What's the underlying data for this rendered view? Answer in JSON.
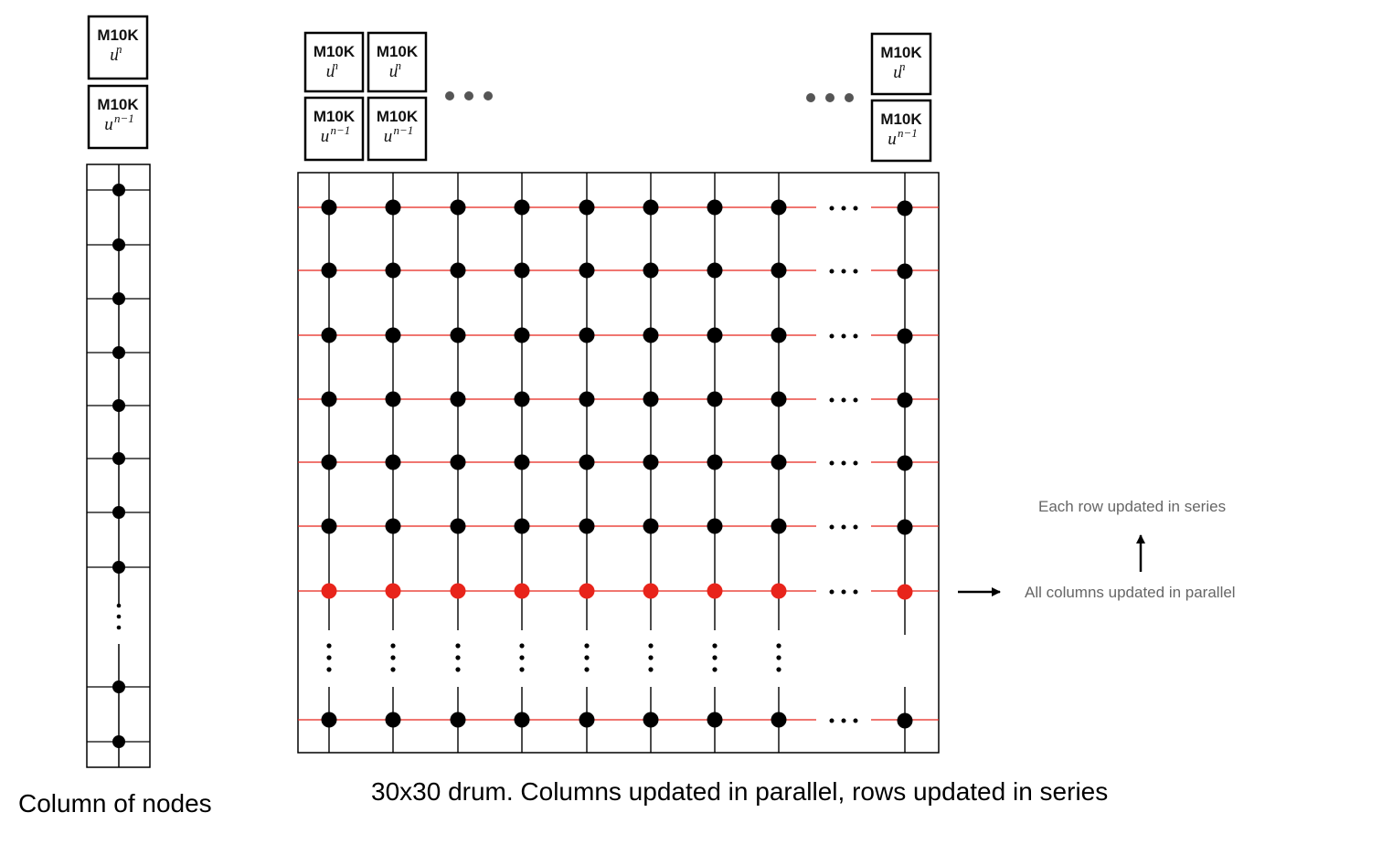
{
  "memory_label": "M10K",
  "memory_symbol": "u",
  "superscript_current": "n",
  "superscript_previous": "n−1",
  "column_caption": "Column of nodes",
  "grid_caption": "30x30 drum. Columns updated in parallel, rows updated in series",
  "note_rows": "Each row updated in series",
  "note_columns": "All columns updated in parallel",
  "colors": {
    "node": "#000000",
    "active_node": "#e8241b",
    "row_line": "#e8241b",
    "column_line": "#000000",
    "ellipsis": "#555555"
  }
}
